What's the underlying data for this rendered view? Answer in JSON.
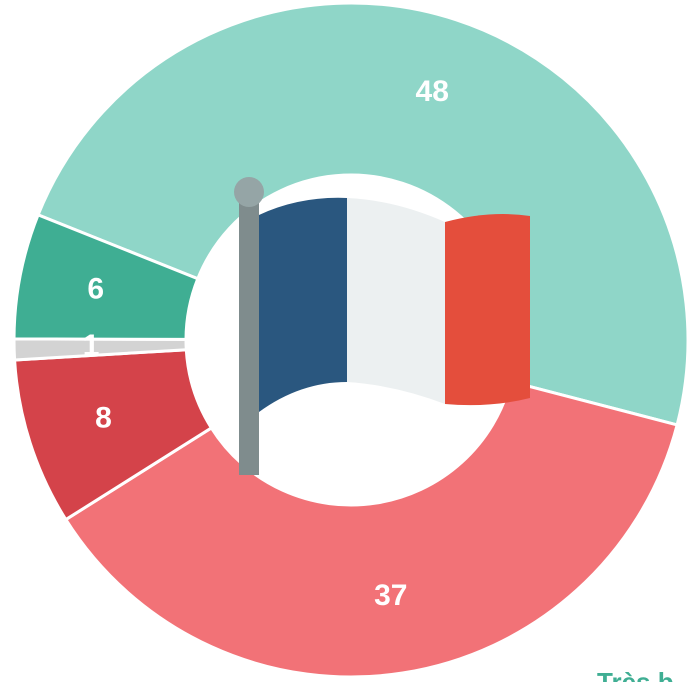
{
  "chart_data": {
    "type": "donut",
    "values": [
      48,
      37,
      8,
      1,
      6
    ],
    "colors": [
      "#8fd6c8",
      "#f27277",
      "#d4434a",
      "#d3d3d3",
      "#3fae93"
    ],
    "annotation": "Très b"
  }
}
